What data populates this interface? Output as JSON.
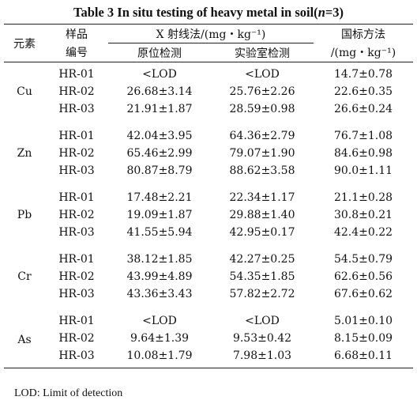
{
  "title": {
    "prefix": "Table 3    In situ testing of heavy metal in soil(",
    "n_var": "n",
    "suffix": "=3)"
  },
  "header": {
    "element": "元素",
    "sample_line1": "样品",
    "sample_line2": "编号",
    "xrf": "X 射线法/(mg・kg⁻¹)",
    "insitu": "原位检测",
    "lab": "实验室检测",
    "standard_line1": "国标方法",
    "standard_line2": "/(mg・kg⁻¹)"
  },
  "groups": [
    {
      "element": "Cu",
      "rows": [
        {
          "id": "HR-01",
          "insitu": "<LOD",
          "lab": "<LOD",
          "std": "14.7±0.78"
        },
        {
          "id": "HR-02",
          "insitu": "26.68±3.14",
          "lab": "25.76±2.26",
          "std": "22.6±0.35"
        },
        {
          "id": "HR-03",
          "insitu": "21.91±1.87",
          "lab": "28.59±0.98",
          "std": "26.6±0.24"
        }
      ]
    },
    {
      "element": "Zn",
      "rows": [
        {
          "id": "HR-01",
          "insitu": "42.04±3.95",
          "lab": "64.36±2.79",
          "std": "76.7±1.08"
        },
        {
          "id": "HR-02",
          "insitu": "65.46±2.99",
          "lab": "79.07±1.90",
          "std": "84.6±0.98"
        },
        {
          "id": "HR-03",
          "insitu": "80.87±8.79",
          "lab": "88.62±3.58",
          "std": "90.0±1.11"
        }
      ]
    },
    {
      "element": "Pb",
      "rows": [
        {
          "id": "HR-01",
          "insitu": "17.48±2.21",
          "lab": "22.34±1.17",
          "std": "21.1±0.28"
        },
        {
          "id": "HR-02",
          "insitu": "19.09±1.87",
          "lab": "29.88±1.40",
          "std": "30.8±0.21"
        },
        {
          "id": "HR-03",
          "insitu": "41.55±5.94",
          "lab": "42.95±0.17",
          "std": "42.4±0.22"
        }
      ]
    },
    {
      "element": "Cr",
      "rows": [
        {
          "id": "HR-01",
          "insitu": "38.12±1.85",
          "lab": "42.27±0.25",
          "std": "54.5±0.79"
        },
        {
          "id": "HR-02",
          "insitu": "43.99±4.89",
          "lab": "54.35±1.85",
          "std": "62.6±0.56"
        },
        {
          "id": "HR-03",
          "insitu": "43.36±3.43",
          "lab": "57.82±2.72",
          "std": "67.6±0.62"
        }
      ]
    },
    {
      "element": "As",
      "rows": [
        {
          "id": "HR-01",
          "insitu": "<LOD",
          "lab": "<LOD",
          "std": "5.01±0.10"
        },
        {
          "id": "HR-02",
          "insitu": "9.64±1.39",
          "lab": "9.53±0.42",
          "std": "8.15±0.09"
        },
        {
          "id": "HR-03",
          "insitu": "10.08±1.79",
          "lab": "7.98±1.03",
          "std": "6.68±0.11"
        }
      ]
    }
  ],
  "footnote": "LOD: Limit of detection"
}
